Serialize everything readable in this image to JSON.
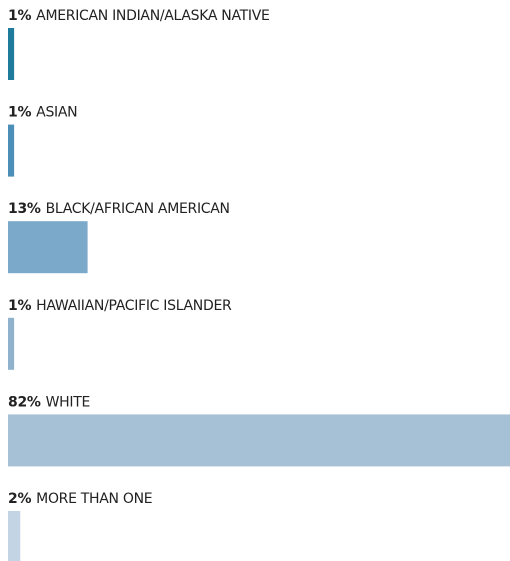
{
  "chart_data": {
    "type": "bar",
    "categories": [
      "AMERICAN INDIAN/ALASKA NATIVE",
      "ASIAN",
      "BLACK/AFRICAN AMERICAN",
      "HAWAIIAN/PACIFIC ISLANDER",
      "WHITE",
      "MORE THAN ONE"
    ],
    "values": [
      1,
      1,
      13,
      1,
      82,
      2
    ],
    "value_labels": [
      "1%",
      "1%",
      "13%",
      "1%",
      "82%",
      "2%"
    ],
    "colors": [
      "#1f7b9b",
      "#4b8fb8",
      "#7ba9c9",
      "#8fb2cd",
      "#a6c1d6",
      "#c3d5e4"
    ]
  }
}
